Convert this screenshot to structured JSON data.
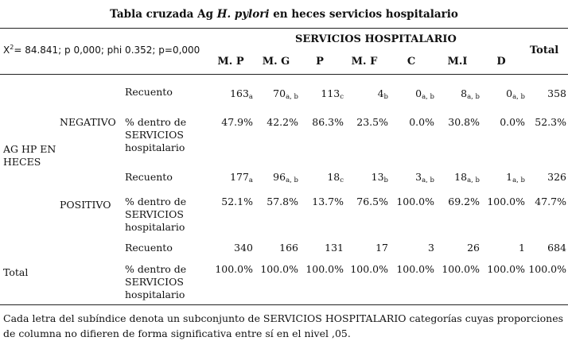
{
  "title_pre": "Tabla cruzada Ag ",
  "title_italic": "H. pylori",
  "title_post": " en heces servicios hospitalario",
  "stats": "X",
  "stats_sup": "2",
  "stats_rest": "= 84.841; p 0,000; phi 0.352; p=0,000",
  "group_header": "SERVICIOS HOSPITALARIO",
  "columns": [
    "M. P",
    "M. G",
    "P",
    "M. F",
    "C",
    "M.I",
    "D"
  ],
  "total_label": "Total",
  "row_header": "AG HP EN HECES",
  "negativo": {
    "label": "NEGATIVO",
    "count_label": "Recuento",
    "counts": [
      [
        "163",
        "a"
      ],
      [
        "70",
        "a, b"
      ],
      [
        "113",
        "c"
      ],
      [
        "4",
        "b"
      ],
      [
        "0",
        "a, b"
      ],
      [
        "8",
        "a, b"
      ],
      [
        "0",
        "a, b"
      ]
    ],
    "count_total": "358",
    "pct_label": "% dentro de SERVICIOS hospitalario",
    "pcts": [
      "47.9%",
      "42.2%",
      "86.3%",
      "23.5%",
      "0.0%",
      "30.8%",
      "0.0%"
    ],
    "pct_total": "52.3%"
  },
  "positivo": {
    "label": "POSITIVO",
    "count_label": "Recuento",
    "counts": [
      [
        "177",
        "a"
      ],
      [
        "96",
        "a, b"
      ],
      [
        "18",
        "c"
      ],
      [
        "13",
        "b"
      ],
      [
        "3",
        "a, b"
      ],
      [
        "18",
        "a, b"
      ],
      [
        "1",
        "a, b"
      ]
    ],
    "count_total": "326",
    "pct_label": "% dentro de SERVICIOS hospitalario",
    "pcts": [
      "52.1%",
      "57.8%",
      "13.7%",
      "76.5%",
      "100.0%",
      "69.2%",
      "100.0%"
    ],
    "pct_total": "47.7%"
  },
  "total_row": {
    "label": "Total",
    "count_label": "Recuento",
    "counts": [
      "340",
      "166",
      "131",
      "17",
      "3",
      "26",
      "1"
    ],
    "count_total": "684",
    "pct_label": "% dentro de SERVICIOS hospitalario",
    "pcts": [
      "100.0%",
      "100.0%",
      "100.0%",
      "100.0%",
      "100.0%",
      "100.0%",
      "100.0%"
    ],
    "pct_total": "100.0%"
  },
  "footnote": "Cada letra del subíndice denota un subconjunto de SERVICIOS HOSPITALARIO categorías cuyas proporciones de columna no difieren de forma significativa entre sí en el nivel ,05."
}
